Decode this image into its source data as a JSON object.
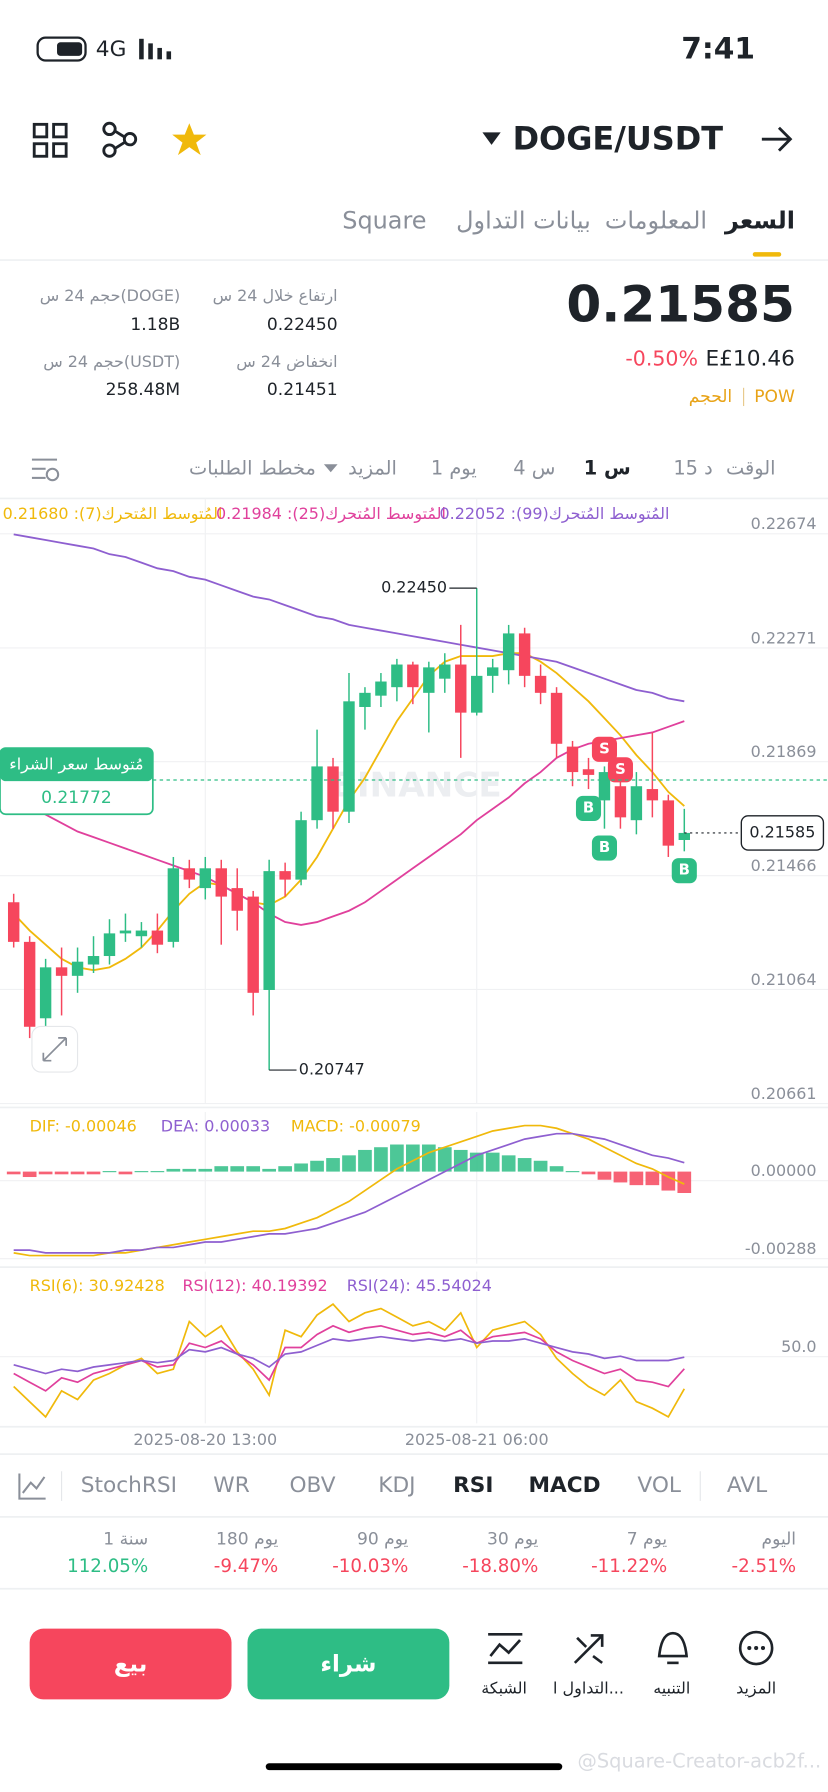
{
  "status_bar": {
    "network": "4G",
    "time": "7:41"
  },
  "header": {
    "symbol": "DOGE/USDT"
  },
  "tabs": [
    "السعر",
    "المعلومات",
    "بيانات التداول",
    "Square"
  ],
  "ticker": {
    "price": "0.21585",
    "change": "-0.50%",
    "fiat": "E£10.46",
    "tags": [
      "POW",
      "الحجم"
    ]
  },
  "stats": [
    {
      "label": "ارتفاع خلال 24 س",
      "value": "0.22450"
    },
    {
      "label": "حجم 24 س(DOGE)",
      "value": "1.18B"
    },
    {
      "label": "انخفاض 24 س",
      "value": "0.21451"
    },
    {
      "label": "حجم 24 س(USDT)",
      "value": "258.48M"
    }
  ],
  "timeframes": [
    "الوقت",
    "15 د",
    "1 س",
    "4 س",
    "1 يوم",
    "المزيد",
    "مخطط الطلبات"
  ],
  "chart_data": [
    {
      "type": "candlestick",
      "watermark": "BINANCE",
      "ylim": [
        0.20627,
        0.22767
      ],
      "yticks": [
        0.22674,
        0.22271,
        0.21869,
        0.21466,
        0.21064,
        0.20661
      ],
      "grid": true,
      "up_color": "#2ebd85",
      "down_color": "#f6465d",
      "open": [
        0.2134,
        0.212,
        0.2093,
        0.2111,
        0.2108,
        0.2112,
        0.2115,
        0.2123,
        0.2122,
        0.2124,
        0.212,
        0.2146,
        0.2139,
        0.2146,
        0.2139,
        0.2136,
        0.2103,
        0.2145,
        0.2142,
        0.2163,
        0.2182,
        0.2166,
        0.2203,
        0.2207,
        0.221,
        0.2218,
        0.2208,
        0.2213,
        0.2218,
        0.2201,
        0.2214,
        0.2216,
        0.2229,
        0.2214,
        0.2208,
        0.2189,
        0.2181,
        0.217,
        0.2175,
        0.2163,
        0.2174,
        0.217,
        0.2156
      ],
      "high": [
        0.2137,
        0.2122,
        0.2114,
        0.2118,
        0.2118,
        0.2122,
        0.2128,
        0.213,
        0.2127,
        0.213,
        0.215,
        0.2149,
        0.215,
        0.2149,
        0.2146,
        0.2138,
        0.2149,
        0.2148,
        0.2166,
        0.2195,
        0.2185,
        0.2215,
        0.221,
        0.2215,
        0.222,
        0.2219,
        0.2219,
        0.2222,
        0.2232,
        0.2245,
        0.222,
        0.2232,
        0.2231,
        0.2218,
        0.221,
        0.2191,
        0.2185,
        0.2182,
        0.2182,
        0.218,
        0.2194,
        0.2172,
        0.2167
      ],
      "low": [
        0.2118,
        0.2086,
        0.2088,
        0.2094,
        0.2102,
        0.2109,
        0.2112,
        0.212,
        0.2118,
        0.2116,
        0.2118,
        0.2139,
        0.2135,
        0.2119,
        0.2124,
        0.2094,
        0.20747,
        0.2136,
        0.214,
        0.216,
        0.216,
        0.2162,
        0.2195,
        0.2203,
        0.2205,
        0.2204,
        0.2194,
        0.2208,
        0.2185,
        0.22,
        0.2208,
        0.2211,
        0.221,
        0.2204,
        0.2185,
        0.2175,
        0.2174,
        0.216,
        0.216,
        0.2158,
        0.2164,
        0.215,
        0.2152
      ],
      "close": [
        0.212,
        0.209,
        0.2111,
        0.2108,
        0.2113,
        0.2115,
        0.2123,
        0.2124,
        0.2124,
        0.2119,
        0.2146,
        0.2142,
        0.2146,
        0.2136,
        0.2131,
        0.2102,
        0.2145,
        0.2142,
        0.2163,
        0.2182,
        0.2166,
        0.2205,
        0.2208,
        0.2212,
        0.2218,
        0.221,
        0.2217,
        0.2218,
        0.2201,
        0.2214,
        0.2217,
        0.2229,
        0.2214,
        0.2208,
        0.219,
        0.218,
        0.2179,
        0.218,
        0.2164,
        0.2175,
        0.217,
        0.2154,
        0.21585
      ],
      "series": [
        {
          "name": "المُتوسط المُتحرك(7): 0.21680",
          "color": "#f0b90b",
          "values": [
            0.213,
            0.2124,
            0.2119,
            0.2114,
            0.2111,
            0.211,
            0.2111,
            0.2114,
            0.2118,
            0.2124,
            0.2131,
            0.2137,
            0.2141,
            0.214,
            0.2137,
            0.2134,
            0.2133,
            0.2136,
            0.2142,
            0.215,
            0.216,
            0.217,
            0.2178,
            0.2188,
            0.2198,
            0.2206,
            0.2214,
            0.2219,
            0.2221,
            0.2221,
            0.2221,
            0.2222,
            0.2222,
            0.2219,
            0.2215,
            0.221,
            0.2205,
            0.2199,
            0.2193,
            0.2186,
            0.218,
            0.2173,
            0.2168
          ]
        },
        {
          "name": "المُتوسط المُتحرك(25): 0.21984",
          "color": "#e0409c",
          "values": [
            0.2171,
            0.2168,
            0.2165,
            0.2162,
            0.2159,
            0.2157,
            0.2155,
            0.2153,
            0.2151,
            0.2149,
            0.2147,
            0.2145,
            0.2143,
            0.214,
            0.2137,
            0.2134,
            0.213,
            0.2127,
            0.2126,
            0.2127,
            0.2129,
            0.2131,
            0.2134,
            0.2138,
            0.2142,
            0.2146,
            0.215,
            0.2154,
            0.2158,
            0.2163,
            0.2167,
            0.2171,
            0.2176,
            0.218,
            0.2185,
            0.2188,
            0.219,
            0.2191,
            0.2192,
            0.2193,
            0.2194,
            0.2196,
            0.2198
          ]
        },
        {
          "name": "المُتوسط المُتحرك(99): 0.22052",
          "color": "#8e5fd0",
          "values": [
            0.2264,
            0.2263,
            0.2262,
            0.2261,
            0.226,
            0.2259,
            0.2257,
            0.2256,
            0.2254,
            0.2252,
            0.2251,
            0.2249,
            0.2248,
            0.2246,
            0.2244,
            0.2242,
            0.2241,
            0.2239,
            0.2237,
            0.2235,
            0.2234,
            0.2232,
            0.2231,
            0.223,
            0.2229,
            0.2228,
            0.2227,
            0.2226,
            0.2225,
            0.2224,
            0.2223,
            0.2222,
            0.2221,
            0.222,
            0.2219,
            0.2217,
            0.2215,
            0.2213,
            0.2211,
            0.2209,
            0.2208,
            0.2206,
            0.2205
          ]
        }
      ],
      "high_label": "0.22450",
      "low_label": "0.20747",
      "last_price": {
        "value": 0.21585,
        "label": "0.21585"
      },
      "average_buy": {
        "title": "مُتوسط سعر الشراء",
        "value": 0.21772,
        "label": "0.21772"
      },
      "buy_signals": [
        null,
        null,
        null,
        null,
        null,
        null,
        null,
        null,
        null,
        null,
        null,
        null,
        null,
        null,
        null,
        null,
        null,
        null,
        null,
        null,
        null,
        null,
        null,
        null,
        null,
        null,
        null,
        null,
        null,
        null,
        null,
        null,
        null,
        null,
        null,
        null,
        "B",
        "B",
        null,
        null,
        null,
        null,
        "B"
      ],
      "sell_signals": [
        null,
        null,
        null,
        null,
        null,
        null,
        null,
        null,
        null,
        null,
        null,
        null,
        null,
        null,
        null,
        null,
        null,
        null,
        null,
        null,
        null,
        null,
        null,
        null,
        null,
        null,
        null,
        null,
        null,
        null,
        null,
        null,
        null,
        null,
        null,
        null,
        null,
        "S",
        "S",
        null,
        null,
        null,
        null
      ]
    },
    {
      "type": "macd",
      "ylim": [
        -0.0034,
        0.0022
      ],
      "yticks": [
        {
          "value": 0,
          "label": "0.00000"
        },
        {
          "value": -0.00288,
          "label": "-0.00288"
        }
      ],
      "grid": true,
      "up_color": "#2ebd85",
      "down_color": "#f6465d",
      "series": [
        {
          "name": "DIF: -0.00046",
          "type": "line",
          "color": "#f0b90b",
          "values": [
            -0.003,
            -0.0031,
            -0.0031,
            -0.0031,
            -0.0031,
            -0.0031,
            -0.003,
            -0.003,
            -0.0029,
            -0.0028,
            -0.0027,
            -0.0026,
            -0.0025,
            -0.0024,
            -0.0023,
            -0.0022,
            -0.0022,
            -0.0021,
            -0.0019,
            -0.0017,
            -0.0014,
            -0.0011,
            -0.0007,
            -0.0003,
            0.0001,
            0.0004,
            0.0007,
            0.0009,
            0.0011,
            0.0013,
            0.0015,
            0.0016,
            0.0017,
            0.0017,
            0.0016,
            0.0014,
            0.0012,
            0.0009,
            0.0006,
            0.0003,
            0.0001,
            -0.0002,
            -0.00046
          ]
        },
        {
          "name": "DEA: 0.00033",
          "type": "line",
          "color": "#8e5fd0",
          "values": [
            -0.0029,
            -0.0029,
            -0.003,
            -0.003,
            -0.003,
            -0.003,
            -0.003,
            -0.0029,
            -0.0029,
            -0.0028,
            -0.0028,
            -0.0027,
            -0.0026,
            -0.0026,
            -0.0025,
            -0.0024,
            -0.0023,
            -0.0023,
            -0.0022,
            -0.0021,
            -0.0019,
            -0.0017,
            -0.0015,
            -0.0012,
            -0.0009,
            -0.0006,
            -0.0003,
            0.0,
            0.0003,
            0.0006,
            0.0008,
            0.001,
            0.0012,
            0.0013,
            0.0014,
            0.0014,
            0.0013,
            0.0012,
            0.001,
            0.0008,
            0.0006,
            0.0005,
            0.00033
          ]
        },
        {
          "name": "MACD: -0.00079",
          "type": "bar",
          "color": "#f0b90b",
          "values": [
            -0.0001,
            -0.0002,
            -0.0001,
            -0.0001,
            -0.0001,
            -0.0001,
            2e-05,
            -0.0001,
            2e-05,
            2e-05,
            0.0001,
            0.0001,
            0.0001,
            0.0002,
            0.0002,
            0.0002,
            0.0001,
            0.0002,
            0.0003,
            0.0004,
            0.0005,
            0.0006,
            0.0008,
            0.0009,
            0.001,
            0.001,
            0.001,
            0.0009,
            0.0008,
            0.0007,
            0.0007,
            0.0006,
            0.0005,
            0.0004,
            0.0002,
            2e-05,
            -0.0001,
            -0.0003,
            -0.0004,
            -0.0005,
            -0.0005,
            -0.0007,
            -0.00079
          ]
        }
      ]
    },
    {
      "type": "line",
      "ylim": [
        15,
        85
      ],
      "yticks": [
        {
          "value": 50,
          "label": "50.0"
        }
      ],
      "grid": true,
      "x": [
        null,
        null,
        null,
        null,
        null,
        null,
        null,
        null,
        null,
        null,
        null,
        null,
        "2025-08-20 13:00",
        null,
        null,
        null,
        null,
        null,
        null,
        null,
        null,
        null,
        null,
        null,
        null,
        null,
        null,
        null,
        null,
        "2025-08-21 06:00",
        null,
        null,
        null,
        null,
        null,
        null,
        null,
        null,
        null,
        null,
        null,
        null,
        null
      ],
      "series": [
        {
          "name": "RSI(6): 30.92428",
          "color": "#f0b90b",
          "values": [
            32,
            25,
            18,
            30,
            26,
            35,
            38,
            42,
            45,
            38,
            40,
            62,
            55,
            60,
            48,
            40,
            28,
            58,
            55,
            65,
            70,
            62,
            66,
            68,
            64,
            60,
            62,
            58,
            66,
            50,
            58,
            60,
            62,
            56,
            45,
            38,
            32,
            28,
            35,
            25,
            22,
            18,
            30.92428
          ]
        },
        {
          "name": "RSI(12): 40.19392",
          "color": "#e0409c",
          "values": [
            38,
            34,
            30,
            36,
            34,
            38,
            40,
            42,
            44,
            41,
            42,
            52,
            50,
            53,
            47,
            42,
            35,
            50,
            50,
            56,
            60,
            57,
            59,
            60,
            58,
            56,
            57,
            55,
            58,
            52,
            55,
            56,
            57,
            54,
            48,
            44,
            41,
            38,
            40,
            35,
            34,
            32,
            40.19392
          ]
        },
        {
          "name": "RSI(24): 45.54024",
          "color": "#8e5fd0",
          "values": [
            42,
            40,
            38,
            40,
            39,
            41,
            42,
            43,
            44,
            43,
            44,
            49,
            48,
            50,
            47,
            45,
            41,
            47,
            48,
            51,
            54,
            53,
            54,
            55,
            54,
            53,
            54,
            53,
            54,
            52,
            53,
            53,
            54,
            52,
            50,
            48,
            47,
            45,
            46,
            44,
            44,
            44,
            45.54024
          ]
        }
      ]
    }
  ],
  "indicator_tabs": [
    "StochRSI",
    "WR",
    "OBV",
    "KDJ",
    "RSI",
    "MACD",
    "VOL",
    "AVL"
  ],
  "performance": {
    "periods": [
      "اليوم",
      "7 يوم",
      "30 يوم",
      "90 يوم",
      "180 يوم",
      "1 سنة"
    ],
    "values": [
      -2.51,
      -11.22,
      -18.8,
      -10.03,
      -9.47,
      112.05
    ],
    "value_labels": [
      "-2.51%",
      "-11.22%",
      "-18.80%",
      "-10.03%",
      "-9.47%",
      "112.05%"
    ]
  },
  "actions": {
    "sell": "بيع",
    "buy": "شراء",
    "tools": [
      "الشبكة",
      "التداول ا...",
      "التنبيه",
      "المزيد"
    ]
  },
  "watermark": "@Square-Creator-acb2f..."
}
